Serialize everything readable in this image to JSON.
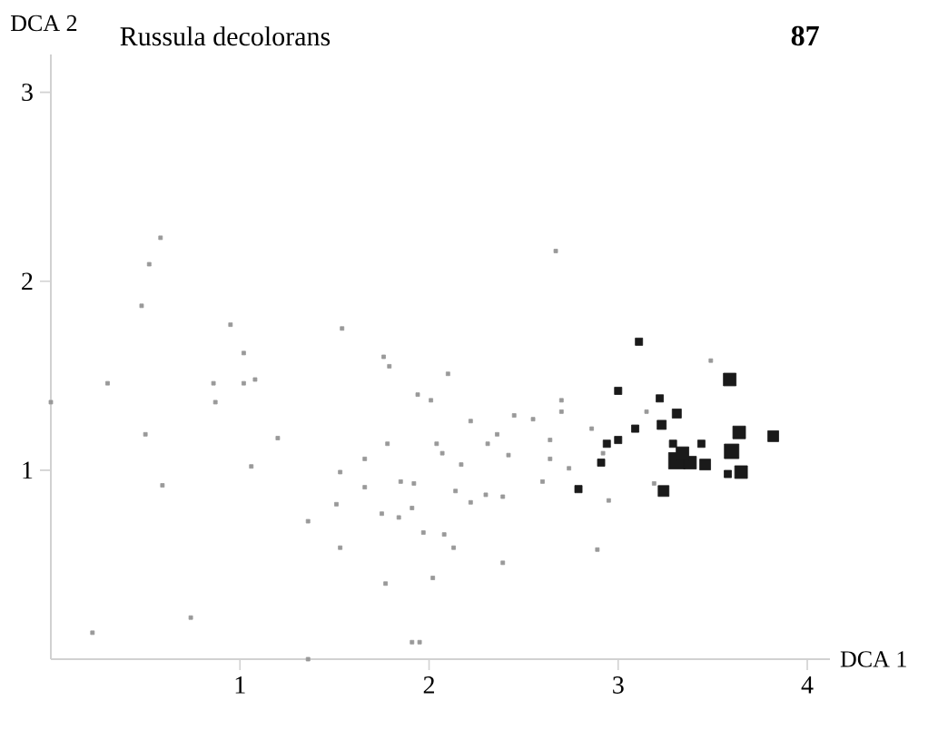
{
  "chart_data": {
    "type": "scatter",
    "title": "Russula decolorans",
    "annotations": [
      "87"
    ],
    "xlabel": "DCA 1",
    "ylabel": "DCA 2",
    "xlim": [
      0,
      4.12
    ],
    "ylim": [
      0,
      3.2
    ],
    "xticks": [
      1,
      2,
      3,
      4
    ],
    "yticks": [
      1,
      2,
      3
    ],
    "marker": "square",
    "series": [
      {
        "color": "#999999",
        "x": [
          0.0,
          0.58,
          0.52,
          0.48,
          0.3,
          0.5,
          0.59,
          0.22,
          0.74,
          0.95,
          1.02,
          0.86,
          1.02,
          1.08,
          0.87,
          1.2,
          1.06,
          1.54,
          1.36,
          1.53,
          1.51,
          1.53,
          1.76,
          1.79,
          1.66,
          1.78,
          1.66,
          1.85,
          1.92,
          1.75,
          1.84,
          1.91,
          1.94,
          2.01,
          2.1,
          2.04,
          2.07,
          2.17,
          2.22,
          2.14,
          2.22,
          1.97,
          2.08,
          2.13,
          1.77,
          2.02,
          1.91,
          1.95,
          1.36,
          2.67,
          2.39,
          2.45,
          2.36,
          2.31,
          2.42,
          2.3,
          2.39,
          2.55,
          2.7,
          2.7,
          2.64,
          2.64,
          2.74,
          2.6,
          2.86,
          2.92,
          2.95,
          2.89,
          3.15,
          3.19,
          3.49
        ],
        "values": [
          1.36,
          2.23,
          2.09,
          1.87,
          1.46,
          1.19,
          0.92,
          0.14,
          0.22,
          1.77,
          1.62,
          1.46,
          1.46,
          1.48,
          1.36,
          1.17,
          1.02,
          1.75,
          0.73,
          0.99,
          0.82,
          0.59,
          1.6,
          1.55,
          1.06,
          1.14,
          0.91,
          0.94,
          0.93,
          0.77,
          0.75,
          0.8,
          1.4,
          1.37,
          1.51,
          1.14,
          1.09,
          1.03,
          1.26,
          0.89,
          0.83,
          0.67,
          0.66,
          0.59,
          0.4,
          0.43,
          0.09,
          0.09,
          0.0,
          2.16,
          0.51,
          1.29,
          1.19,
          1.14,
          1.08,
          0.87,
          0.86,
          1.27,
          1.37,
          1.31,
          1.16,
          1.06,
          1.01,
          0.94,
          1.22,
          1.09,
          0.84,
          0.58,
          1.31,
          0.93,
          1.58
        ]
      },
      {
        "type": "bubble",
        "color": "#1a1a1a",
        "x": [
          3.11,
          3.0,
          3.22,
          3.31,
          3.23,
          3.09,
          2.94,
          3.0,
          2.91,
          2.79,
          3.24,
          3.29,
          3.44,
          3.59,
          3.64,
          3.82,
          3.6,
          3.65,
          3.58,
          3.31,
          3.38,
          3.46,
          3.34
        ],
        "values": [
          1.68,
          1.42,
          1.38,
          1.3,
          1.24,
          1.22,
          1.14,
          1.16,
          1.04,
          0.9,
          0.89,
          1.14,
          1.14,
          1.48,
          1.2,
          1.18,
          1.1,
          0.99,
          0.98,
          1.05,
          1.04,
          1.03,
          1.09
        ],
        "sizes": [
          0.2,
          0.2,
          0.2,
          0.31,
          0.31,
          0.2,
          0.2,
          0.2,
          0.2,
          0.2,
          0.44,
          0.2,
          0.2,
          0.6,
          0.6,
          0.44,
          0.79,
          0.6,
          0.2,
          1,
          0.6,
          0.44,
          0.6
        ]
      }
    ]
  }
}
